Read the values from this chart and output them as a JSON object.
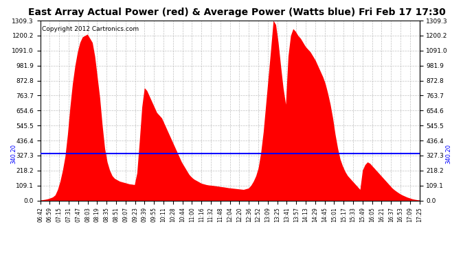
{
  "title": "East Array Actual Power (red) & Average Power (Watts blue) Fri Feb 17 17:30",
  "copyright": "Copyright 2012 Cartronics.com",
  "average_power": 340.2,
  "y_max": 1309.3,
  "y_ticks": [
    0.0,
    109.1,
    218.2,
    327.3,
    436.4,
    545.5,
    654.6,
    763.7,
    872.8,
    981.9,
    1091.0,
    1200.2,
    1309.3
  ],
  "fill_color": "red",
  "line_color": "blue",
  "background_color": "#ffffff",
  "grid_color": "#b0b0b0",
  "title_fontsize": 10,
  "copyright_fontsize": 6.5,
  "x_labels": [
    "06:42",
    "06:59",
    "07:15",
    "07:31",
    "07:47",
    "08:03",
    "08:19",
    "08:35",
    "08:51",
    "09:07",
    "09:23",
    "09:39",
    "09:55",
    "10:11",
    "10:28",
    "10:44",
    "11:00",
    "11:16",
    "11:32",
    "11:48",
    "12:04",
    "12:20",
    "12:36",
    "12:52",
    "13:09",
    "13:25",
    "13:41",
    "13:57",
    "14:13",
    "14:29",
    "14:45",
    "15:01",
    "15:17",
    "15:33",
    "15:49",
    "16:05",
    "16:21",
    "16:37",
    "16:53",
    "17:09",
    "17:25"
  ],
  "power_curve": [
    3,
    5,
    8,
    12,
    18,
    25,
    40,
    80,
    140,
    220,
    320,
    480,
    680,
    850,
    980,
    1080,
    1150,
    1190,
    1200,
    1210,
    1180,
    1150,
    1050,
    900,
    750,
    550,
    380,
    280,
    220,
    180,
    160,
    150,
    140,
    135,
    130,
    125,
    120,
    118,
    115,
    200,
    430,
    680,
    820,
    800,
    760,
    720,
    680,
    640,
    620,
    600,
    560,
    520,
    480,
    440,
    400,
    360,
    320,
    280,
    250,
    220,
    190,
    170,
    155,
    145,
    135,
    125,
    120,
    115,
    112,
    110,
    108,
    105,
    103,
    100,
    98,
    95,
    92,
    90,
    88,
    86,
    84,
    82,
    80,
    85,
    90,
    110,
    140,
    180,
    240,
    350,
    500,
    700,
    900,
    1100,
    1310,
    1280,
    1150,
    980,
    820,
    700,
    1050,
    1200,
    1250,
    1230,
    1200,
    1180,
    1150,
    1120,
    1100,
    1080,
    1050,
    1020,
    980,
    940,
    900,
    850,
    780,
    700,
    600,
    480,
    380,
    300,
    250,
    210,
    180,
    160,
    140,
    120,
    100,
    80,
    220,
    260,
    280,
    270,
    250,
    230,
    210,
    190,
    170,
    150,
    130,
    110,
    90,
    75,
    62,
    50,
    40,
    32,
    24,
    18,
    12,
    8,
    5,
    3
  ]
}
